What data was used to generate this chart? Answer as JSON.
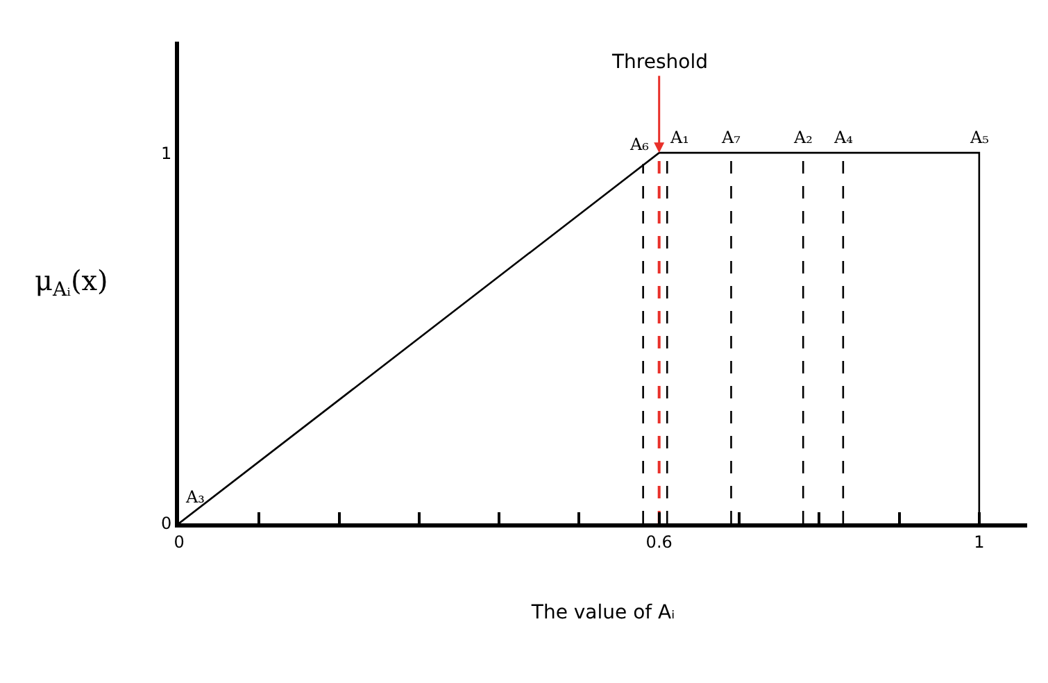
{
  "chart_data": {
    "type": "line",
    "xlabel": "The value of Aᵢ",
    "ylabel": "μ$_{Aᵢ}$(x)",
    "xlim": [
      0,
      1.06
    ],
    "ylim": [
      0,
      1.3
    ],
    "xticks": [
      0,
      {
        "value": 0.1,
        "label": null
      },
      {
        "value": 0.2,
        "label": null
      },
      {
        "value": 0.3,
        "label": null
      },
      {
        "value": 0.4,
        "label": null
      },
      {
        "value": 0.5,
        "label": null
      },
      0.6,
      {
        "value": 0.7,
        "label": null
      },
      {
        "value": 0.8,
        "label": null
      },
      {
        "value": 0.9,
        "label": null
      },
      1
    ],
    "yticks": [
      0,
      1
    ],
    "marker": "none",
    "series": [
      {
        "color": "#000000",
        "x": [
          0,
          0.6,
          1,
          1
        ],
        "values": [
          0,
          1,
          1,
          0
        ],
        "line_style": "solid"
      },
      {
        "color": "#000000",
        "x": [
          0.58,
          0.58
        ],
        "values": [
          0,
          0.97
        ],
        "line_style": "dashed"
      },
      {
        "color": "#000000",
        "x": [
          0.61,
          0.61
        ],
        "values": [
          0,
          1
        ],
        "line_style": "dashed"
      },
      {
        "color": "#000000",
        "x": [
          0.69,
          0.69
        ],
        "values": [
          0,
          1
        ],
        "line_style": "dashed"
      },
      {
        "color": "#000000",
        "x": [
          0.78,
          0.78
        ],
        "values": [
          0,
          1
        ],
        "line_style": "dashed"
      },
      {
        "color": "#000000",
        "x": [
          0.83,
          0.83
        ],
        "values": [
          0,
          1
        ],
        "line_style": "dashed"
      },
      {
        "color": "#e8302a",
        "x": [
          0.6,
          0.6
        ],
        "values": [
          0,
          1
        ],
        "line_style": "dashed"
      }
    ],
    "annotations": [
      {
        "text": "Threshold",
        "x": 0.6,
        "y": 1
      },
      {
        "text": "A₃",
        "x": 0.02,
        "y": 0.03
      },
      {
        "text": "A₆",
        "x": 0.575,
        "y": 0.98
      },
      {
        "text": "A₁",
        "x": 0.625,
        "y": 1
      },
      {
        "text": "A₇",
        "x": 0.69,
        "y": 1
      },
      {
        "text": "A₂",
        "x": 0.78,
        "y": 1
      },
      {
        "text": "A₄",
        "x": 0.83,
        "y": 1
      },
      {
        "text": "A₅",
        "x": 1.0,
        "y": 1
      }
    ]
  }
}
